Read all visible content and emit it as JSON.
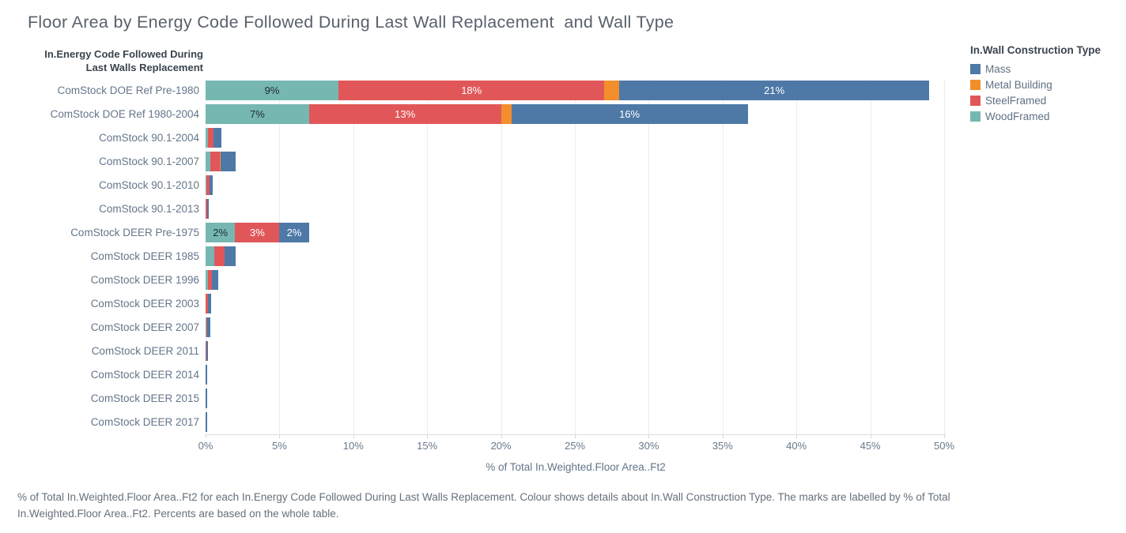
{
  "chart_data": {
    "type": "bar",
    "orientation": "horizontal-stacked",
    "title": "Floor Area by Energy Code Followed During Last Wall Replacement  and Wall Type",
    "row_header_line1": "In.Energy Code Followed During",
    "row_header_line2": "Last Walls Replacement",
    "xlabel": "% of Total In.Weighted.Floor Area..Ft2",
    "xlim": [
      0,
      50
    ],
    "x_ticks": [
      "0%",
      "5%",
      "10%",
      "15%",
      "20%",
      "25%",
      "30%",
      "35%",
      "40%",
      "45%",
      "50%"
    ],
    "grid": "vertical-light",
    "legend": {
      "title": "In.Wall Construction Type",
      "position": "top-right",
      "items": [
        {
          "series": "Mass",
          "color": "#4e79a7"
        },
        {
          "series": "Metal Building",
          "color": "#f28e2b"
        },
        {
          "series": "SteelFramed",
          "color": "#e15759"
        },
        {
          "series": "WoodFramed",
          "color": "#76b7b2"
        }
      ]
    },
    "rows": [
      {
        "category": "ComStock DOE Ref Pre-1980",
        "segments": [
          {
            "series": "WoodFramed",
            "value": 9,
            "label": "9%",
            "label_style": "dark"
          },
          {
            "series": "SteelFramed",
            "value": 18,
            "label": "18%",
            "label_style": "light"
          },
          {
            "series": "Metal Building",
            "value": 1,
            "label": ""
          },
          {
            "series": "Mass",
            "value": 21,
            "label": "21%",
            "label_style": "light"
          }
        ]
      },
      {
        "category": "ComStock DOE Ref 1980-2004",
        "segments": [
          {
            "series": "WoodFramed",
            "value": 7,
            "label": "7%",
            "label_style": "dark"
          },
          {
            "series": "SteelFramed",
            "value": 13,
            "label": "13%",
            "label_style": "light"
          },
          {
            "series": "Metal Building",
            "value": 0.7,
            "label": ""
          },
          {
            "series": "Mass",
            "value": 16,
            "label": "16%",
            "label_style": "light"
          }
        ]
      },
      {
        "category": "ComStock 90.1-2004",
        "segments": [
          {
            "series": "WoodFramed",
            "value": 0.15,
            "label": ""
          },
          {
            "series": "SteelFramed",
            "value": 0.4,
            "label": ""
          },
          {
            "series": "Mass",
            "value": 0.5,
            "label": ""
          }
        ]
      },
      {
        "category": "ComStock 90.1-2007",
        "segments": [
          {
            "series": "WoodFramed",
            "value": 0.3,
            "label": ""
          },
          {
            "series": "SteelFramed",
            "value": 0.65,
            "label": ""
          },
          {
            "series": "Metal Building",
            "value": 0.08,
            "label": ""
          },
          {
            "series": "Mass",
            "value": 1.0,
            "label": ""
          }
        ]
      },
      {
        "category": "ComStock 90.1-2010",
        "segments": [
          {
            "series": "WoodFramed",
            "value": 0.05,
            "label": ""
          },
          {
            "series": "SteelFramed",
            "value": 0.22,
            "label": ""
          },
          {
            "series": "Mass",
            "value": 0.22,
            "label": ""
          }
        ]
      },
      {
        "category": "ComStock 90.1-2013",
        "segments": [
          {
            "series": "SteelFramed",
            "value": 0.1,
            "label": ""
          },
          {
            "series": "Mass",
            "value": 0.13,
            "label": ""
          }
        ]
      },
      {
        "category": "ComStock DEER Pre-1975",
        "segments": [
          {
            "series": "WoodFramed",
            "value": 2,
            "label": "2%",
            "label_style": "dark"
          },
          {
            "series": "SteelFramed",
            "value": 3,
            "label": "3%",
            "label_style": "light"
          },
          {
            "series": "Mass",
            "value": 2,
            "label": "2%",
            "label_style": "light"
          }
        ]
      },
      {
        "category": "ComStock DEER 1985",
        "segments": [
          {
            "series": "WoodFramed",
            "value": 0.6,
            "label": ""
          },
          {
            "series": "SteelFramed",
            "value": 0.7,
            "label": ""
          },
          {
            "series": "Mass",
            "value": 0.75,
            "label": ""
          }
        ]
      },
      {
        "category": "ComStock DEER 1996",
        "segments": [
          {
            "series": "WoodFramed",
            "value": 0.15,
            "label": ""
          },
          {
            "series": "SteelFramed",
            "value": 0.3,
            "label": ""
          },
          {
            "series": "Mass",
            "value": 0.4,
            "label": ""
          }
        ]
      },
      {
        "category": "ComStock DEER 2003",
        "segments": [
          {
            "series": "SteelFramed",
            "value": 0.15,
            "label": ""
          },
          {
            "series": "Mass",
            "value": 0.2,
            "label": ""
          }
        ]
      },
      {
        "category": "ComStock DEER 2007",
        "segments": [
          {
            "series": "WoodFramed",
            "value": 0.03,
            "label": ""
          },
          {
            "series": "SteelFramed",
            "value": 0.07,
            "label": ""
          },
          {
            "series": "Mass",
            "value": 0.2,
            "label": ""
          }
        ]
      },
      {
        "category": "ComStock DEER 2011",
        "segments": [
          {
            "series": "SteelFramed",
            "value": 0.06,
            "label": ""
          },
          {
            "series": "Mass",
            "value": 0.12,
            "label": ""
          }
        ]
      },
      {
        "category": "ComStock DEER 2014",
        "segments": [
          {
            "series": "Mass",
            "value": 0.1,
            "label": ""
          }
        ]
      },
      {
        "category": "ComStock DEER 2015",
        "segments": [
          {
            "series": "Mass",
            "value": 0.12,
            "label": ""
          }
        ]
      },
      {
        "category": "ComStock DEER 2017",
        "segments": [
          {
            "series": "Mass",
            "value": 0.12,
            "label": ""
          }
        ]
      }
    ],
    "caption": "% of Total In.Weighted.Floor Area..Ft2 for each In.Energy Code Followed During Last Walls Replacement. Colour shows details about In.Wall Construction Type. The marks are labelled by % of Total In.Weighted.Floor Area..Ft2. Percents are based on the whole table."
  }
}
